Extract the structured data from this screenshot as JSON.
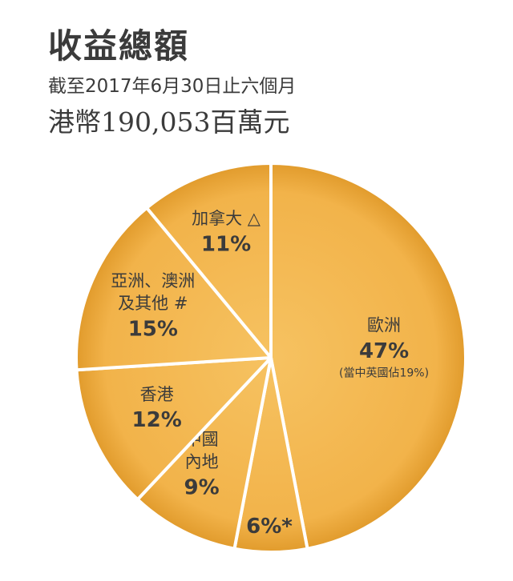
{
  "header": {
    "title": "收益總額",
    "subtitle": "截至2017年6月30日止六個月",
    "total": "港幣190,053百萬元"
  },
  "colors": {
    "slice_fill": "#f2b34a",
    "slice_edge": "#e19b2c",
    "separator": "#ffffff",
    "label_text": "#3b3b3b"
  },
  "chart_data": {
    "type": "pie",
    "title": "收益總額",
    "subtitle": "截至2017年6月30日止六個月",
    "slices": [
      {
        "label_lines": [
          "歐洲"
        ],
        "value": 47,
        "value_label": "47%",
        "note": "(當中英國佔19%)"
      },
      {
        "label_lines": [],
        "value": 6,
        "value_label": "6%*",
        "note": ""
      },
      {
        "label_lines": [
          "中國",
          "內地"
        ],
        "value": 9,
        "value_label": "9%",
        "note": ""
      },
      {
        "label_lines": [
          "香港"
        ],
        "value": 12,
        "value_label": "12%",
        "note": ""
      },
      {
        "label_lines": [
          "亞洲、澳洲",
          "及其他 #"
        ],
        "value": 15,
        "value_label": "15%",
        "note": ""
      },
      {
        "label_lines": [
          "加拿大 △"
        ],
        "value": 11,
        "value_label": "11%",
        "note": ""
      }
    ]
  }
}
